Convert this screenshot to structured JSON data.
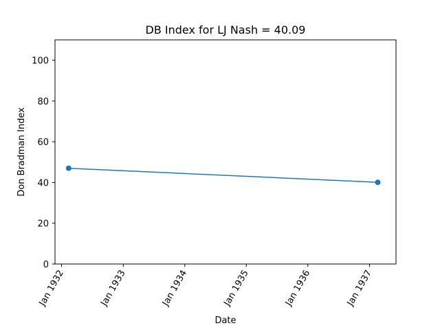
{
  "chart_data": {
    "type": "line",
    "title": "DB Index for LJ Nash = 40.09",
    "xlabel": "Date",
    "ylabel": "Don Bradman Index",
    "x_ticks": [
      "Jan 1932",
      "Jan 1933",
      "Jan 1934",
      "Jan 1935",
      "Jan 1936",
      "Jan 1937"
    ],
    "y_ticks": [
      0,
      20,
      40,
      60,
      80,
      100
    ],
    "ylim": [
      0,
      110
    ],
    "xlim": [
      "1931-11-23",
      "1937-06-07"
    ],
    "grid": false,
    "legend": "none",
    "series": [
      {
        "color": "#1f77b4",
        "marker": "circle",
        "x": [
          "1932-02-12",
          "1937-02-19"
        ],
        "y": [
          47,
          40.09
        ]
      }
    ]
  }
}
